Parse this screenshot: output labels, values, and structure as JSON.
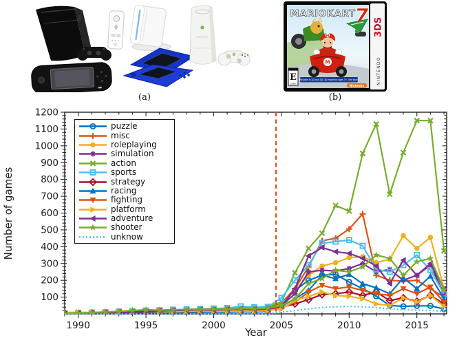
{
  "figure_a": {
    "caption": "(a)",
    "consoles": [
      "playstation-3",
      "playstation-3-controller",
      "psp",
      "wii-remote",
      "wii-console",
      "nintendo-ds",
      "xbox-360",
      "xbox-360-controller"
    ]
  },
  "figure_b": {
    "caption": "(b)",
    "title": "MARIOKART",
    "seven": "7",
    "sidebar_brand": "NINTENDO",
    "sidebar_system": "3DS",
    "rating": "E",
    "rating_org": "ESRB",
    "banner": "Playable in 2D and 3D. 3D mode for ages 7+. See back.",
    "brand": "Nintendo"
  },
  "chart_data": {
    "type": "line",
    "title": "",
    "xlabel": "Year",
    "ylabel": "Number of games",
    "xlim": [
      1989,
      2017.2
    ],
    "ylim": [
      0,
      1200
    ],
    "xticks": [
      1990,
      1995,
      2000,
      2005,
      2010,
      2015
    ],
    "yticks": [
      100,
      200,
      300,
      400,
      500,
      600,
      700,
      800,
      900,
      1000,
      1100,
      1200
    ],
    "grid": false,
    "legend_position": "top-left",
    "vline": {
      "x": 2004.6,
      "color": "#D95319",
      "style": "dashed"
    },
    "x": [
      1989,
      1990,
      1991,
      1992,
      1993,
      1994,
      1995,
      1996,
      1997,
      1998,
      1999,
      2000,
      2001,
      2002,
      2003,
      2004,
      2005,
      2006,
      2007,
      2008,
      2009,
      2010,
      2011,
      2012,
      2013,
      2014,
      2015,
      2016,
      2017
    ],
    "series": [
      {
        "name": "puzzle",
        "color": "#0072BD",
        "marker": "circle-open",
        "linestyle": "solid",
        "values": [
          2,
          3,
          5,
          4,
          6,
          5,
          8,
          6,
          7,
          8,
          10,
          12,
          10,
          14,
          12,
          15,
          55,
          140,
          200,
          230,
          235,
          190,
          150,
          105,
          50,
          45,
          48,
          48,
          30
        ]
      },
      {
        "name": "misc",
        "color": "#D95319",
        "marker": "plus",
        "linestyle": "solid",
        "values": [
          3,
          4,
          6,
          8,
          10,
          12,
          15,
          14,
          16,
          18,
          22,
          25,
          20,
          28,
          30,
          35,
          65,
          150,
          280,
          435,
          450,
          505,
          595,
          230,
          200,
          195,
          200,
          150,
          100
        ]
      },
      {
        "name": "roleplaying",
        "color": "#EDB120",
        "marker": "circle-filled",
        "linestyle": "solid",
        "values": [
          2,
          3,
          4,
          6,
          8,
          10,
          12,
          14,
          13,
          15,
          18,
          20,
          22,
          25,
          24,
          28,
          55,
          140,
          230,
          285,
          305,
          335,
          340,
          305,
          325,
          465,
          390,
          455,
          150
        ]
      },
      {
        "name": "simulation",
        "color": "#7E2F8E",
        "marker": "asterisk",
        "linestyle": "solid",
        "values": [
          2,
          4,
          6,
          8,
          10,
          14,
          12,
          16,
          18,
          20,
          24,
          22,
          26,
          30,
          28,
          32,
          50,
          120,
          250,
          260,
          255,
          270,
          300,
          250,
          265,
          200,
          230,
          290,
          120
        ]
      },
      {
        "name": "action",
        "color": "#77AC30",
        "marker": "x",
        "linestyle": "solid",
        "values": [
          3,
          5,
          8,
          10,
          12,
          15,
          18,
          20,
          22,
          25,
          28,
          30,
          32,
          35,
          38,
          45,
          70,
          245,
          390,
          480,
          645,
          612,
          955,
          1130,
          712,
          960,
          1150,
          1150,
          375
        ]
      },
      {
        "name": "sports",
        "color": "#4DBEEE",
        "marker": "square-open",
        "linestyle": "solid",
        "values": [
          4,
          6,
          8,
          10,
          14,
          16,
          20,
          22,
          25,
          28,
          30,
          32,
          35,
          45,
          40,
          42,
          95,
          200,
          290,
          420,
          430,
          440,
          405,
          265,
          250,
          290,
          350,
          260,
          120
        ]
      },
      {
        "name": "strategy",
        "color": "#A2142F",
        "marker": "diamond-open",
        "linestyle": "solid",
        "values": [
          2,
          3,
          5,
          6,
          8,
          10,
          12,
          14,
          16,
          15,
          18,
          20,
          22,
          24,
          22,
          26,
          40,
          60,
          85,
          115,
          120,
          130,
          110,
          130,
          80,
          95,
          75,
          110,
          60
        ]
      },
      {
        "name": "racing",
        "color": "#0072BD",
        "marker": "triangle-up",
        "linestyle": "solid",
        "values": [
          2,
          4,
          5,
          8,
          10,
          12,
          14,
          16,
          18,
          20,
          22,
          25,
          24,
          28,
          26,
          30,
          45,
          90,
          140,
          230,
          210,
          235,
          180,
          155,
          120,
          215,
          150,
          225,
          90
        ]
      },
      {
        "name": "fighting",
        "color": "#D95319",
        "marker": "triangle-down",
        "linestyle": "solid",
        "values": [
          2,
          3,
          5,
          8,
          12,
          15,
          18,
          16,
          15,
          14,
          16,
          18,
          20,
          22,
          20,
          24,
          35,
          70,
          130,
          170,
          150,
          160,
          140,
          120,
          110,
          150,
          120,
          160,
          70
        ]
      },
      {
        "name": "platform",
        "color": "#EDB120",
        "marker": "triangle-right",
        "linestyle": "solid",
        "values": [
          8,
          10,
          8,
          10,
          12,
          14,
          16,
          15,
          14,
          16,
          18,
          17,
          16,
          18,
          16,
          20,
          30,
          80,
          105,
          130,
          110,
          105,
          90,
          60,
          50,
          95,
          70,
          110,
          45
        ]
      },
      {
        "name": "adventure",
        "color": "#7E2F8E",
        "marker": "triangle-left",
        "linestyle": "solid",
        "values": [
          2,
          4,
          6,
          8,
          10,
          12,
          15,
          18,
          20,
          22,
          25,
          24,
          26,
          28,
          26,
          30,
          45,
          150,
          345,
          395,
          370,
          360,
          330,
          285,
          180,
          320,
          230,
          300,
          150
        ]
      },
      {
        "name": "shooter",
        "color": "#77AC30",
        "marker": "star",
        "linestyle": "solid",
        "values": [
          3,
          5,
          8,
          12,
          15,
          20,
          25,
          22,
          24,
          26,
          28,
          30,
          28,
          32,
          30,
          35,
          50,
          90,
          180,
          210,
          260,
          250,
          280,
          350,
          330,
          230,
          310,
          330,
          145
        ]
      },
      {
        "name": "unknow",
        "color": "#4DBEEE",
        "marker": "none",
        "linestyle": "dotted",
        "values": [
          0,
          0,
          0,
          0,
          0,
          0,
          0,
          0,
          0,
          0,
          0,
          0,
          0,
          0,
          0,
          2,
          10,
          20,
          30,
          38,
          42,
          45,
          42,
          38,
          30,
          25,
          22,
          20,
          15
        ]
      }
    ]
  }
}
